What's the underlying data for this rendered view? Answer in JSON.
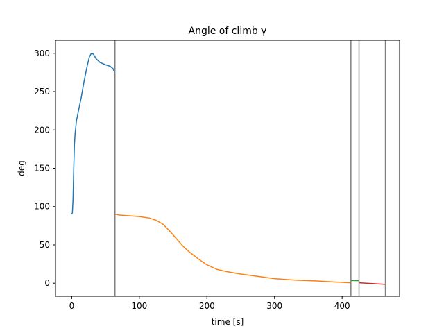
{
  "chart_data": {
    "type": "line",
    "title": "Angle of climb γ",
    "xlabel": "time [s]",
    "ylabel": "deg",
    "xlim": [
      -24,
      485
    ],
    "ylim": [
      -17,
      317
    ],
    "x_ticks": [
      0,
      100,
      200,
      300,
      400
    ],
    "y_ticks": [
      0,
      50,
      100,
      150,
      200,
      250,
      300
    ],
    "grid": false,
    "vertical_lines": [
      64,
      413,
      425,
      464
    ],
    "vertical_line_color": "#808080",
    "series": [
      {
        "color": "#1f77b4",
        "points": [
          [
            0,
            90
          ],
          [
            1,
            92
          ],
          [
            2,
            110
          ],
          [
            3,
            150
          ],
          [
            4,
            180
          ],
          [
            5,
            195
          ],
          [
            7,
            212
          ],
          [
            10,
            225
          ],
          [
            14,
            242
          ],
          [
            18,
            262
          ],
          [
            22,
            280
          ],
          [
            26,
            295
          ],
          [
            29,
            300
          ],
          [
            32,
            299
          ],
          [
            36,
            293
          ],
          [
            42,
            288
          ],
          [
            50,
            285
          ],
          [
            57,
            283
          ],
          [
            61,
            280
          ],
          [
            64,
            274
          ]
        ]
      },
      {
        "color": "#ff7f0e",
        "points": [
          [
            64,
            90
          ],
          [
            70,
            89
          ],
          [
            85,
            88
          ],
          [
            100,
            87
          ],
          [
            115,
            85
          ],
          [
            125,
            82
          ],
          [
            135,
            77
          ],
          [
            145,
            68
          ],
          [
            155,
            58
          ],
          [
            165,
            48
          ],
          [
            175,
            40
          ],
          [
            190,
            30
          ],
          [
            200,
            24
          ],
          [
            215,
            18
          ],
          [
            230,
            15
          ],
          [
            250,
            12
          ],
          [
            275,
            9
          ],
          [
            300,
            6
          ],
          [
            330,
            4
          ],
          [
            360,
            3
          ],
          [
            390,
            1.5
          ],
          [
            413,
            0.5
          ]
        ]
      },
      {
        "color": "#2ca02c",
        "points": [
          [
            413,
            3.5
          ],
          [
            425,
            3.2
          ]
        ]
      },
      {
        "color": "#d62728",
        "points": [
          [
            425,
            0.5
          ],
          [
            445,
            -0.5
          ],
          [
            464,
            -1.5
          ]
        ]
      }
    ]
  }
}
